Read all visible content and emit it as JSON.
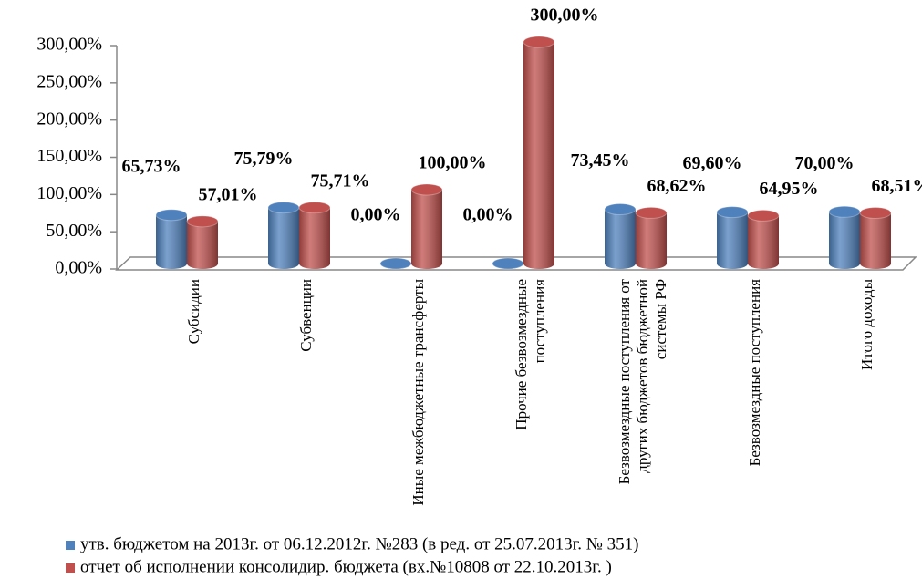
{
  "chart_data": {
    "type": "bar",
    "categories": [
      "Субсидии",
      "Субвенции",
      "Иные межбюджетные трансферты",
      "Прочие безвозмездные поступления",
      "Безвозмездные поступления от других бюджетов бюджетной системы РФ",
      "Безвозмездные поступления",
      "Итого доходы"
    ],
    "series": [
      {
        "name": "утв. бюджетом на 2013г. от 06.12.2012г. №283 (в ред. от 25.07.2013г. № 351)",
        "color": "#4f81bd",
        "values": [
          65.73,
          75.79,
          0,
          0,
          73.45,
          69.6,
          70
        ],
        "value_labels": [
          "65,73%",
          "75,79%",
          "0,00%",
          "0,00%",
          "73,45%",
          "69,60%",
          "70,00%"
        ]
      },
      {
        "name": "отчет об исполнении консолидир. бюджета (вх.№10808 от 22.10.2013г. )",
        "color": "#c0504d",
        "values": [
          57.01,
          75.71,
          100,
          300,
          68.62,
          64.95,
          68.51
        ],
        "value_labels": [
          "57,01%",
          "75,71%",
          "100,00%",
          "300,00%",
          "68,62%",
          "64,95%",
          "68,51%"
        ]
      }
    ],
    "ylim": [
      0,
      300
    ],
    "yticks": [
      {
        "value": 0,
        "label": "0,00%"
      },
      {
        "value": 50,
        "label": "50,00%"
      },
      {
        "value": 100,
        "label": "100,00%"
      },
      {
        "value": 150,
        "label": "150,00%"
      },
      {
        "value": 200,
        "label": "200,00%"
      },
      {
        "value": 250,
        "label": "250,00%"
      },
      {
        "value": 300,
        "label": "300,00%"
      }
    ],
    "legend": "bottom"
  }
}
